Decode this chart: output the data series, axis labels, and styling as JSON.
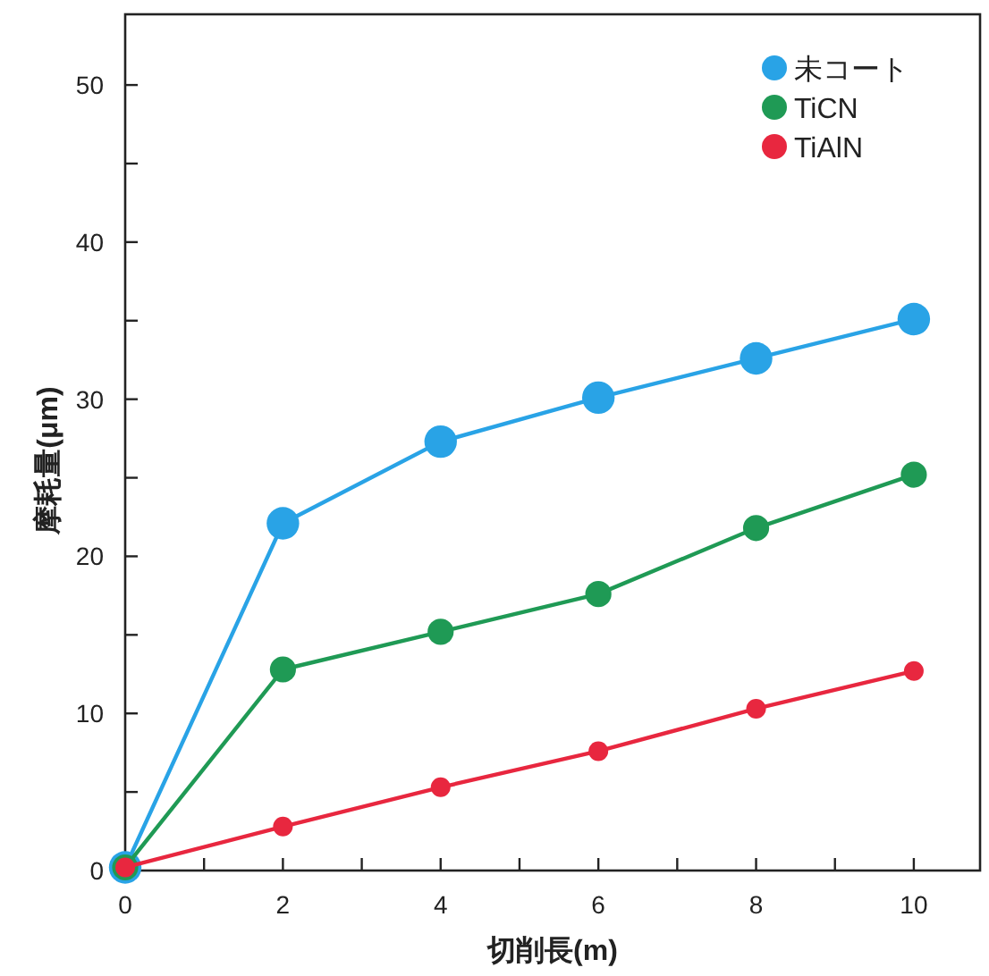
{
  "chart_data": {
    "type": "line",
    "xlabel": "切削長(m)",
    "ylabel": "摩耗量(μm)",
    "x": [
      0,
      2,
      4,
      6,
      8,
      10
    ],
    "series": [
      {
        "name": "未コート",
        "color": "#29a3e6",
        "values": [
          0.2,
          22.1,
          27.3,
          30.1,
          32.6,
          35.1
        ]
      },
      {
        "name": "TiCN",
        "color": "#1f9a55",
        "values": [
          0.2,
          12.8,
          15.2,
          17.6,
          21.8,
          25.2
        ]
      },
      {
        "name": "TiAlN",
        "color": "#e8273f",
        "values": [
          0.2,
          2.8,
          5.3,
          7.6,
          10.3,
          12.7
        ]
      }
    ],
    "xlim": [
      0,
      10.84
    ],
    "ylim": [
      0,
      54.5
    ],
    "xticks": [
      0,
      {
        "value": 1,
        "label": null
      },
      2,
      {
        "value": 3,
        "label": null
      },
      4,
      {
        "value": 5,
        "label": null
      },
      6,
      {
        "value": 7,
        "label": null
      },
      8,
      {
        "value": 9,
        "label": null
      },
      10
    ],
    "yticks": [
      0,
      {
        "value": 5,
        "label": null
      },
      10,
      {
        "value": 15,
        "label": null
      },
      20,
      {
        "value": 25,
        "label": null
      },
      30,
      {
        "value": 35,
        "label": null
      },
      40,
      {
        "value": 45,
        "label": null
      },
      50
    ],
    "grid": false,
    "legend": "top right",
    "marker": "circle",
    "line_style": "solid"
  }
}
